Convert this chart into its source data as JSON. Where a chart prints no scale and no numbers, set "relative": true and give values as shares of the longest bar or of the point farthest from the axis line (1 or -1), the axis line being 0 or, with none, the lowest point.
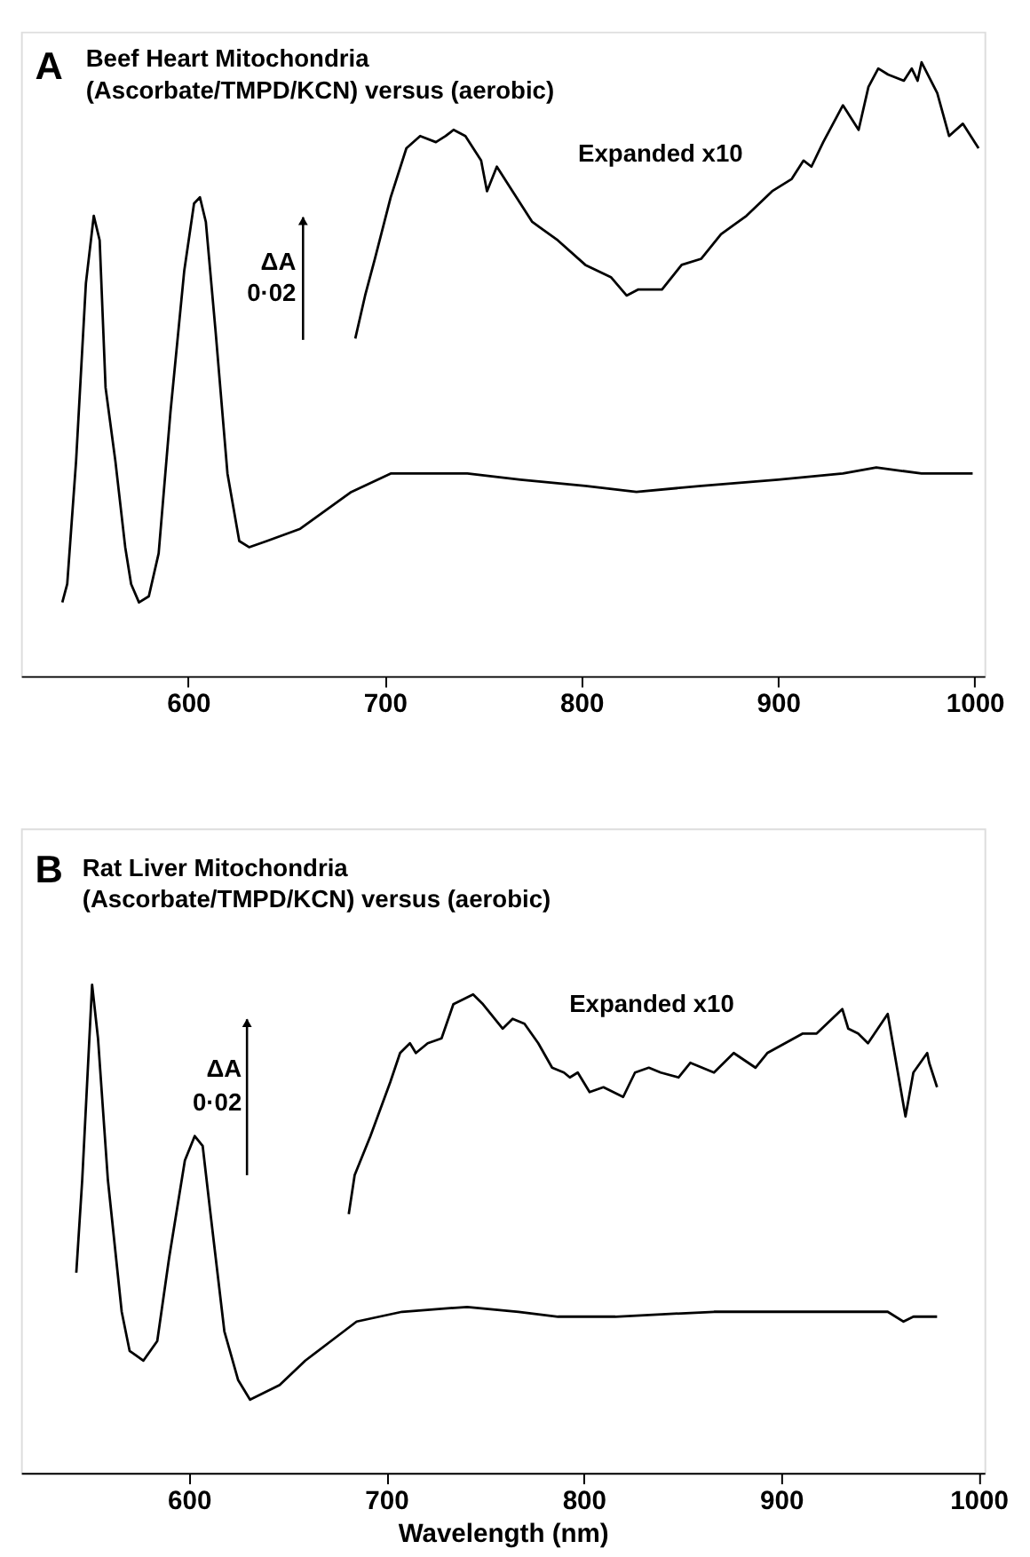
{
  "chart_data": [
    {
      "type": "line",
      "relative": true,
      "title": "Beef Heart Mitochondria",
      "subtitle": "(Ascorbate/TMPD/KCN) versus (aerobic)",
      "annotations": [
        "A",
        "ΔA",
        "0·02"
      ],
      "xlim": [
        515,
        1005
      ],
      "xticks": [
        600,
        700,
        800,
        900,
        1000
      ],
      "tick_labels": "x",
      "grid": false,
      "line_style": "solid",
      "series": [
        {
          "color": "#000000",
          "x": [
            536,
            538.5,
            543,
            548,
            552,
            555,
            558,
            563,
            568,
            571,
            575,
            580,
            585,
            591,
            598,
            603,
            606,
            609,
            614,
            620,
            626,
            631,
            640,
            657,
            670,
            683,
            703,
            719,
            742,
            769,
            802,
            828,
            861,
            900,
            933,
            950,
            973,
            989,
            999
          ],
          "values": [
            0.12,
            0.15,
            0.35,
            0.64,
            0.75,
            0.71,
            0.47,
            0.35,
            0.21,
            0.15,
            0.12,
            0.13,
            0.2,
            0.43,
            0.66,
            0.77,
            0.78,
            0.74,
            0.56,
            0.33,
            0.22,
            0.21,
            0.22,
            0.24,
            0.27,
            0.3,
            0.33,
            0.33,
            0.33,
            0.32,
            0.31,
            0.3,
            0.31,
            0.32,
            0.33,
            0.34,
            0.33,
            0.33,
            0.33
          ]
        },
        {
          "name": "Expanded x10",
          "color": "#000000",
          "x": [
            685,
            690,
            695,
            703,
            711,
            718,
            726,
            731,
            735,
            741,
            749,
            752,
            757,
            765,
            775,
            788,
            802,
            815,
            823,
            829,
            841,
            851,
            861,
            871,
            884,
            897,
            907,
            913,
            917,
            923,
            933,
            941,
            946,
            951,
            956,
            964,
            968,
            971,
            973,
            981,
            987,
            994,
            1002
          ],
          "values": [
            0.55,
            0.62,
            0.68,
            0.78,
            0.86,
            0.88,
            0.87,
            0.88,
            0.89,
            0.88,
            0.84,
            0.79,
            0.83,
            0.79,
            0.74,
            0.71,
            0.67,
            0.65,
            0.62,
            0.63,
            0.63,
            0.67,
            0.68,
            0.72,
            0.75,
            0.79,
            0.81,
            0.84,
            0.83,
            0.87,
            0.93,
            0.89,
            0.96,
            0.99,
            0.98,
            0.97,
            0.99,
            0.97,
            1.0,
            0.95,
            0.88,
            0.9,
            0.86
          ]
        }
      ]
    },
    {
      "type": "line",
      "relative": true,
      "title": "Rat Liver Mitochondria",
      "subtitle": "(Ascorbate/TMPD/KCN) versus (aerobic)",
      "xlabel": "Wavelength (nm)",
      "annotations": [
        "B",
        "ΔA",
        "0·02"
      ],
      "xlim": [
        515,
        1003
      ],
      "xticks": [
        600,
        700,
        800,
        900,
        1000
      ],
      "tick_labels": "x",
      "grid": false,
      "line_style": "solid",
      "series": [
        {
          "color": "#000000",
          "x": [
            543,
            546,
            551,
            554,
            559,
            566,
            570,
            577,
            584,
            590,
            598,
            603,
            607,
            611,
            618,
            625,
            631,
            646,
            659,
            672,
            685,
            708,
            741,
            767,
            787,
            816,
            866,
            925,
            954,
            962,
            967,
            979
          ],
          "values": [
            0.41,
            0.6,
            1.0,
            0.89,
            0.6,
            0.33,
            0.25,
            0.23,
            0.27,
            0.44,
            0.64,
            0.69,
            0.67,
            0.53,
            0.29,
            0.19,
            0.15,
            0.18,
            0.23,
            0.27,
            0.31,
            0.33,
            0.34,
            0.33,
            0.32,
            0.32,
            0.33,
            0.33,
            0.33,
            0.31,
            0.32,
            0.32
          ]
        },
        {
          "name": "Expanded x10",
          "color": "#000000",
          "x": [
            681,
            684,
            692,
            702,
            707,
            712,
            715,
            721,
            728,
            734,
            744,
            749,
            759,
            764,
            770,
            777,
            784,
            790,
            793,
            797,
            803,
            810,
            820,
            826,
            833,
            839,
            848,
            854,
            866,
            876,
            887,
            893,
            911,
            918,
            931,
            934,
            939,
            944,
            954,
            957,
            963,
            967,
            974,
            975,
            979
          ],
          "values": [
            0.53,
            0.61,
            0.69,
            0.8,
            0.86,
            0.88,
            0.86,
            0.88,
            0.89,
            0.96,
            0.98,
            0.96,
            0.91,
            0.93,
            0.92,
            0.88,
            0.83,
            0.82,
            0.81,
            0.82,
            0.78,
            0.79,
            0.77,
            0.82,
            0.83,
            0.82,
            0.81,
            0.84,
            0.82,
            0.86,
            0.83,
            0.86,
            0.9,
            0.9,
            0.95,
            0.91,
            0.9,
            0.88,
            0.94,
            0.87,
            0.73,
            0.82,
            0.86,
            0.84,
            0.79
          ]
        }
      ]
    }
  ]
}
